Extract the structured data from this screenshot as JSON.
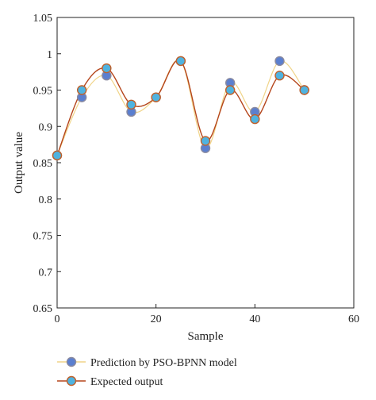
{
  "chart_data": {
    "type": "line",
    "xlabel": "Sample",
    "ylabel": "Output value",
    "xlim": [
      0,
      60
    ],
    "ylim": [
      0.65,
      1.05
    ],
    "xticks": [
      0,
      20,
      40,
      60
    ],
    "yticks": [
      0.65,
      0.7,
      0.75,
      0.8,
      0.85,
      0.9,
      0.95,
      1,
      1.05
    ],
    "ytick_labels": [
      "0.65",
      "0.7",
      "0.75",
      "0.8",
      "0.85",
      "0.9",
      "0.95",
      "1",
      "1.05"
    ],
    "grid": false,
    "legend_position": "bottom",
    "series": [
      {
        "name": "Prediction by PSO-BPNN model",
        "x": [
          0,
          5,
          10,
          15,
          20,
          25,
          30,
          35,
          40,
          45,
          50
        ],
        "values": [
          0.86,
          0.94,
          0.97,
          0.92,
          0.94,
          0.99,
          0.87,
          0.96,
          0.92,
          0.99,
          0.95
        ],
        "line_color": "#f0d488",
        "marker_color": "#5b7fcf",
        "marker_edge": "#8a8aa0"
      },
      {
        "name": "Expected output",
        "x": [
          0,
          5,
          10,
          15,
          20,
          25,
          30,
          35,
          40,
          45,
          50
        ],
        "values": [
          0.86,
          0.95,
          0.98,
          0.93,
          0.94,
          0.99,
          0.88,
          0.95,
          0.91,
          0.97,
          0.95
        ],
        "line_color": "#b5451b",
        "marker_color": "#4fb3e0",
        "marker_edge": "#c0602a"
      }
    ]
  }
}
